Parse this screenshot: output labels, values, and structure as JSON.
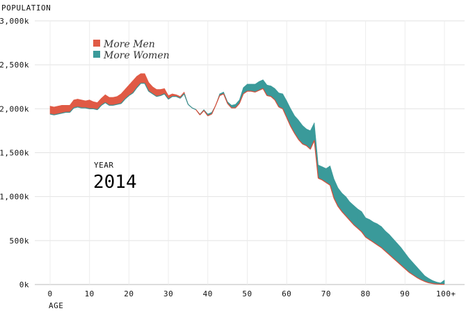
{
  "chart_data": {
    "type": "area",
    "ylabel": "POPULATION",
    "xlabel": "AGE",
    "ylim": [
      0,
      3000000
    ],
    "xlim": [
      0,
      100
    ],
    "y_ticks": [
      {
        "value": 0,
        "label": "0k"
      },
      {
        "value": 500000,
        "label": "500k"
      },
      {
        "value": 1000000,
        "label": "1,000k"
      },
      {
        "value": 1500000,
        "label": "1,500k"
      },
      {
        "value": 2000000,
        "label": "2,000k"
      },
      {
        "value": 2500000,
        "label": "2,500k"
      },
      {
        "value": 3000000,
        "label": "3,000k"
      }
    ],
    "x_ticks": [
      {
        "value": 0,
        "label": "0"
      },
      {
        "value": 10,
        "label": "10"
      },
      {
        "value": 20,
        "label": "20"
      },
      {
        "value": 30,
        "label": "30"
      },
      {
        "value": 40,
        "label": "40"
      },
      {
        "value": 50,
        "label": "50"
      },
      {
        "value": 60,
        "label": "60"
      },
      {
        "value": 70,
        "label": "70"
      },
      {
        "value": 80,
        "label": "80"
      },
      {
        "value": 90,
        "label": "90"
      },
      {
        "value": 100,
        "label": "100+"
      }
    ],
    "grid": true,
    "legend_position": "top-left",
    "legend": [
      {
        "label": "More Men",
        "color": "#e05a45"
      },
      {
        "label": "More Women",
        "color": "#3a9a9a"
      }
    ],
    "year_label": "YEAR",
    "year": "2014",
    "ages": [
      0,
      1,
      2,
      3,
      4,
      5,
      6,
      7,
      8,
      9,
      10,
      11,
      12,
      13,
      14,
      15,
      16,
      17,
      18,
      19,
      20,
      21,
      22,
      23,
      24,
      25,
      26,
      27,
      28,
      29,
      30,
      31,
      32,
      33,
      34,
      35,
      36,
      37,
      38,
      39,
      40,
      41,
      42,
      43,
      44,
      45,
      46,
      47,
      48,
      49,
      50,
      51,
      52,
      53,
      54,
      55,
      56,
      57,
      58,
      59,
      60,
      61,
      62,
      63,
      64,
      65,
      66,
      67,
      68,
      69,
      70,
      71,
      72,
      73,
      74,
      75,
      76,
      77,
      78,
      79,
      80,
      81,
      82,
      83,
      84,
      85,
      86,
      87,
      88,
      89,
      90,
      91,
      92,
      93,
      94,
      95,
      96,
      97,
      98,
      99,
      100
    ],
    "series": [
      {
        "name": "Men",
        "values": [
          2030000,
          2020000,
          2030000,
          2040000,
          2040000,
          2040000,
          2100000,
          2110000,
          2100000,
          2090000,
          2100000,
          2080000,
          2070000,
          2120000,
          2160000,
          2130000,
          2130000,
          2140000,
          2170000,
          2220000,
          2270000,
          2320000,
          2370000,
          2400000,
          2400000,
          2300000,
          2250000,
          2220000,
          2220000,
          2230000,
          2150000,
          2170000,
          2160000,
          2140000,
          2190000,
          2050000,
          2010000,
          1990000,
          1930000,
          1980000,
          1920000,
          1940000,
          2040000,
          2150000,
          2170000,
          2060000,
          2010000,
          2010000,
          2060000,
          2170000,
          2200000,
          2200000,
          2190000,
          2210000,
          2230000,
          2150000,
          2140000,
          2100000,
          2020000,
          2000000,
          1900000,
          1800000,
          1720000,
          1650000,
          1600000,
          1580000,
          1540000,
          1640000,
          1210000,
          1190000,
          1160000,
          1130000,
          980000,
          890000,
          830000,
          780000,
          730000,
          680000,
          640000,
          600000,
          540000,
          510000,
          480000,
          450000,
          420000,
          380000,
          340000,
          300000,
          260000,
          220000,
          180000,
          140000,
          110000,
          80000,
          55000,
          35000,
          20000,
          12000,
          6000,
          3000,
          2000
        ]
      },
      {
        "name": "Women",
        "values": [
          1940000,
          1930000,
          1940000,
          1950000,
          1960000,
          1960000,
          2010000,
          2020000,
          2010000,
          2010000,
          2000000,
          2000000,
          1990000,
          2040000,
          2070000,
          2040000,
          2040000,
          2050000,
          2060000,
          2110000,
          2150000,
          2180000,
          2240000,
          2290000,
          2290000,
          2200000,
          2170000,
          2140000,
          2150000,
          2170000,
          2110000,
          2140000,
          2140000,
          2120000,
          2170000,
          2050000,
          2010000,
          1990000,
          1940000,
          1990000,
          1940000,
          1960000,
          2040000,
          2170000,
          2190000,
          2080000,
          2040000,
          2050000,
          2100000,
          2240000,
          2280000,
          2280000,
          2280000,
          2310000,
          2330000,
          2270000,
          2260000,
          2230000,
          2180000,
          2170000,
          2090000,
          2000000,
          1920000,
          1870000,
          1810000,
          1770000,
          1750000,
          1840000,
          1360000,
          1340000,
          1320000,
          1350000,
          1200000,
          1100000,
          1040000,
          1000000,
          940000,
          900000,
          860000,
          830000,
          760000,
          740000,
          710000,
          690000,
          660000,
          610000,
          570000,
          520000,
          470000,
          420000,
          360000,
          300000,
          250000,
          200000,
          150000,
          100000,
          70000,
          45000,
          28000,
          18000,
          50000
        ]
      }
    ]
  }
}
